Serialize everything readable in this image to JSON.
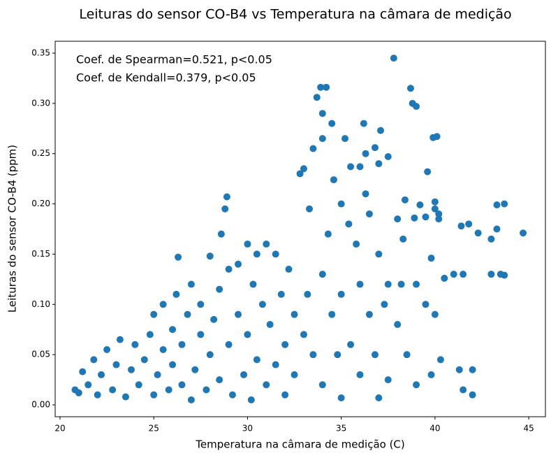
{
  "chart_data": {
    "type": "scatter",
    "title": "Leituras do sensor CO-B4 vs Temperatura na câmara de medição",
    "x_label": "Temperatura na câmara de medição (C)",
    "y_label": "Leituras do sensor CO-B4 (ppm)",
    "annotations": [
      "Coef. de Spearman=0.521, p<0.05",
      "Coef. de Kendall=0.379, p<0.05"
    ],
    "color": "#1f77b4",
    "xlim": [
      19.74,
      45.89
    ],
    "ylim": [
      -0.0118,
      0.3618
    ],
    "xticks": [
      20,
      25,
      30,
      35,
      40,
      45
    ],
    "yticks": [
      {
        "value": 0,
        "label": "0.00"
      },
      {
        "value": 0.05,
        "label": "0.05"
      },
      {
        "value": 0.1,
        "label": "0.10"
      },
      {
        "value": 0.15,
        "label": "0.15"
      },
      {
        "value": 0.2,
        "label": "0.20"
      },
      {
        "value": 0.25,
        "label": "0.25"
      },
      {
        "value": 0.3,
        "label": "0.30"
      },
      {
        "value": 0.35,
        "label": "0.35"
      }
    ],
    "x": [
      20.8,
      21,
      21.2,
      21.5,
      21.8,
      22,
      22.2,
      22.5,
      22.8,
      23,
      23.2,
      23.5,
      23.8,
      24,
      24.2,
      24.5,
      24.8,
      25,
      25,
      25.2,
      25.5,
      25.5,
      25.8,
      26,
      26,
      26.2,
      26.3,
      26.5,
      26.5,
      26.8,
      27,
      27,
      27.2,
      27.5,
      27.5,
      27.8,
      28,
      28,
      28.2,
      28.5,
      28.5,
      28.6,
      28.8,
      28.9,
      29,
      29,
      29.2,
      29.5,
      29.5,
      29.8,
      30,
      30,
      30.2,
      30.3,
      30.5,
      30.5,
      30.8,
      31,
      31,
      31.2,
      31.5,
      31.5,
      31.8,
      32,
      32,
      32.2,
      32.5,
      32.5,
      32.8,
      33,
      33,
      33.2,
      33.3,
      33.5,
      33.5,
      33.7,
      33.9,
      34,
      34,
      34.2,
      34,
      34,
      34.3,
      34.5,
      34.6,
      34.5,
      34.8,
      35,
      35,
      35,
      35.2,
      35.4,
      35.5,
      35.5,
      35.8,
      36,
      36,
      36,
      36.2,
      36.3,
      36.3,
      36.5,
      36.5,
      36.8,
      36.8,
      37,
      37,
      37,
      37.1,
      37.3,
      37.5,
      37.5,
      37.5,
      37.8,
      38,
      38,
      38.2,
      38.3,
      38.4,
      38.5,
      38.7,
      38.8,
      39,
      38.9,
      39,
      39,
      39.2,
      39.5,
      39.5,
      39.6,
      39.8,
      39.8,
      39.9,
      40,
      40.1,
      40,
      40.2,
      40.2,
      40,
      40.3,
      40.5,
      41,
      41.3,
      41.4,
      41.5,
      41.5,
      41.8,
      42,
      42,
      42.3,
      43,
      43,
      43.3,
      43.3,
      43.5,
      43.7,
      43.7,
      44.7
    ],
    "values": [
      0.015,
      0.012,
      0.033,
      0.02,
      0.045,
      0.01,
      0.03,
      0.055,
      0.015,
      0.04,
      0.065,
      0.008,
      0.035,
      0.06,
      0.02,
      0.045,
      0.07,
      0.01,
      0.09,
      0.03,
      0.055,
      0.1,
      0.015,
      0.075,
      0.04,
      0.11,
      0.147,
      0.02,
      0.06,
      0.09,
      0.005,
      0.12,
      0.035,
      0.07,
      0.1,
      0.015,
      0.05,
      0.148,
      0.085,
      0.025,
      0.115,
      0.17,
      0.195,
      0.207,
      0.06,
      0.135,
      0.01,
      0.09,
      0.14,
      0.03,
      0.16,
      0.07,
      0.005,
      0.12,
      0.045,
      0.15,
      0.1,
      0.02,
      0.16,
      0.08,
      0.15,
      0.04,
      0.11,
      0.06,
      0.01,
      0.135,
      0.09,
      0.03,
      0.23,
      0.235,
      0.07,
      0.11,
      0.195,
      0.255,
      0.05,
      0.306,
      0.316,
      0.29,
      0.265,
      0.316,
      0.13,
      0.02,
      0.17,
      0.28,
      0.224,
      0.09,
      0.05,
      0.2,
      0.11,
      0.007,
      0.265,
      0.18,
      0.237,
      0.06,
      0.16,
      0.237,
      0.12,
      0.03,
      0.28,
      0.25,
      0.21,
      0.19,
      0.09,
      0.256,
      0.05,
      0.24,
      0.15,
      0.007,
      0.273,
      0.1,
      0.247,
      0.12,
      0.025,
      0.345,
      0.08,
      0.185,
      0.12,
      0.165,
      0.204,
      0.05,
      0.315,
      0.3,
      0.297,
      0.186,
      0.12,
      0.02,
      0.199,
      0.187,
      0.1,
      0.232,
      0.03,
      0.146,
      0.266,
      0.202,
      0.267,
      0.195,
      0.185,
      0.19,
      0.09,
      0.045,
      0.126,
      0.13,
      0.035,
      0.178,
      0.13,
      0.015,
      0.18,
      0.01,
      0.035,
      0.171,
      0.165,
      0.13,
      0.175,
      0.199,
      0.13,
      0.2,
      0.129,
      0.171
    ]
  }
}
